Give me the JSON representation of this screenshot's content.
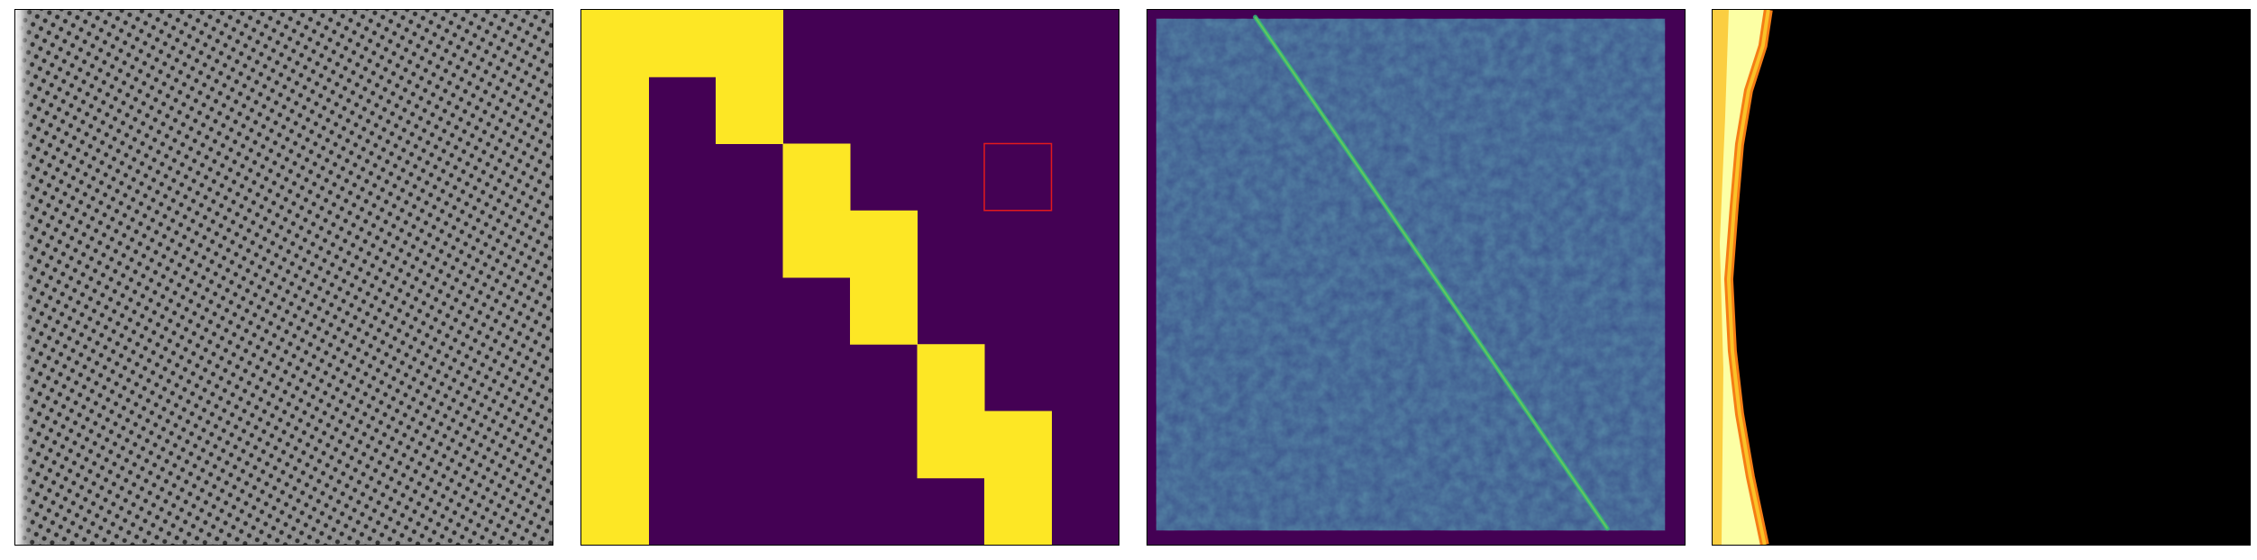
{
  "figure": {
    "panels": [
      {
        "kind": "micrograph-lattice",
        "colormap": "gray",
        "background": "#8a8a8a"
      },
      {
        "kind": "binary-mask-grid",
        "colormap": "viridis",
        "grid_size": 8,
        "on_color": "#fde725",
        "off_color": "#440154",
        "mask_rows": [
          [
            1,
            1,
            1,
            0,
            0,
            0,
            0,
            0
          ],
          [
            1,
            0,
            1,
            0,
            0,
            0,
            0,
            0
          ],
          [
            1,
            0,
            0,
            1,
            0,
            0,
            0,
            0
          ],
          [
            1,
            0,
            0,
            1,
            1,
            0,
            0,
            0
          ],
          [
            1,
            0,
            0,
            0,
            1,
            0,
            0,
            0
          ],
          [
            1,
            0,
            0,
            0,
            0,
            1,
            0,
            0
          ],
          [
            1,
            0,
            0,
            0,
            0,
            1,
            1,
            0
          ],
          [
            1,
            0,
            0,
            0,
            0,
            0,
            1,
            0
          ]
        ],
        "highlight_cell": {
          "row": 2,
          "col": 6,
          "color": "#e31a1c"
        }
      },
      {
        "kind": "heatmap-diagonal-band",
        "colormap": "viridis",
        "background": "#3b528b",
        "frame_color": "#440154",
        "band_color": "#35b779"
      },
      {
        "kind": "edge-map",
        "colormap": "inferno",
        "background": "#000000",
        "edge_colors": [
          "#fcffa4",
          "#fac228",
          "#f57d15",
          "#d44842"
        ]
      }
    ]
  }
}
